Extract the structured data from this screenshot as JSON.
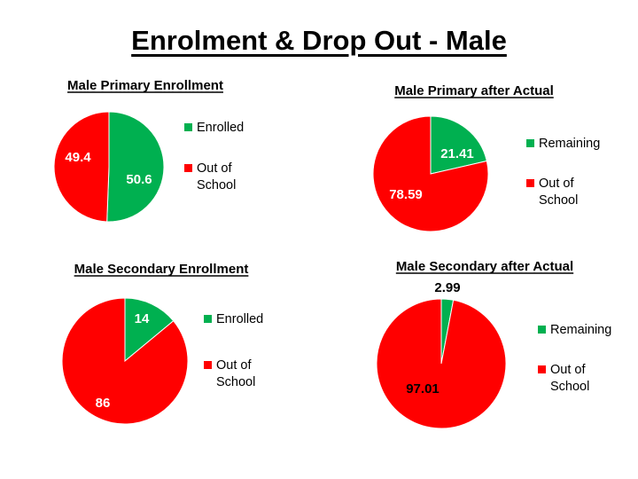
{
  "slide": {
    "title": "Enrolment & Drop Out - Male"
  },
  "colors": {
    "green": "#00b050",
    "red": "#ff0000",
    "label_light": "#ffffff",
    "label_dark": "#000000"
  },
  "chart_data": [
    {
      "id": "male-primary-enrollment",
      "type": "pie",
      "title": "Male Primary Enrollment",
      "slices": [
        {
          "name": "Enrolled",
          "legend": [
            "Enrolled"
          ],
          "value": 50.6,
          "label": "50.6",
          "color": "green",
          "label_color": "label_light"
        },
        {
          "name": "Out of School",
          "legend": [
            "Out of",
            "School"
          ],
          "value": 49.4,
          "label": "49.4",
          "color": "red",
          "label_color": "label_light"
        }
      ]
    },
    {
      "id": "male-primary-after-actual",
      "type": "pie",
      "title": "Male Primary after Actual",
      "slices": [
        {
          "name": "Remaining",
          "legend": [
            "Remaining"
          ],
          "value": 21.41,
          "label": "21.41",
          "color": "green",
          "label_color": "label_light"
        },
        {
          "name": "Out of School",
          "legend": [
            "Out of",
            "School"
          ],
          "value": 78.59,
          "label": "78.59",
          "color": "red",
          "label_color": "label_light"
        }
      ]
    },
    {
      "id": "male-secondary-enrollment",
      "type": "pie",
      "title": "Male Secondary Enrollment",
      "slices": [
        {
          "name": "Enrolled",
          "legend": [
            "Enrolled"
          ],
          "value": 14,
          "label": "14",
          "color": "green",
          "label_color": "label_light"
        },
        {
          "name": "Out of School",
          "legend": [
            "Out of",
            "School"
          ],
          "value": 86,
          "label": "86",
          "color": "red",
          "label_color": "label_light"
        }
      ]
    },
    {
      "id": "male-secondary-after-actual",
      "type": "pie",
      "title": "Male Secondary after Actual",
      "slices": [
        {
          "name": "Remaining",
          "legend": [
            "Remaining"
          ],
          "value": 2.99,
          "label": "2.99",
          "color": "green",
          "label_color": "label_dark"
        },
        {
          "name": "Out of School",
          "legend": [
            "Out of",
            "School"
          ],
          "value": 97.01,
          "label": "97.01",
          "color": "red",
          "label_color": "label_dark"
        }
      ]
    }
  ]
}
